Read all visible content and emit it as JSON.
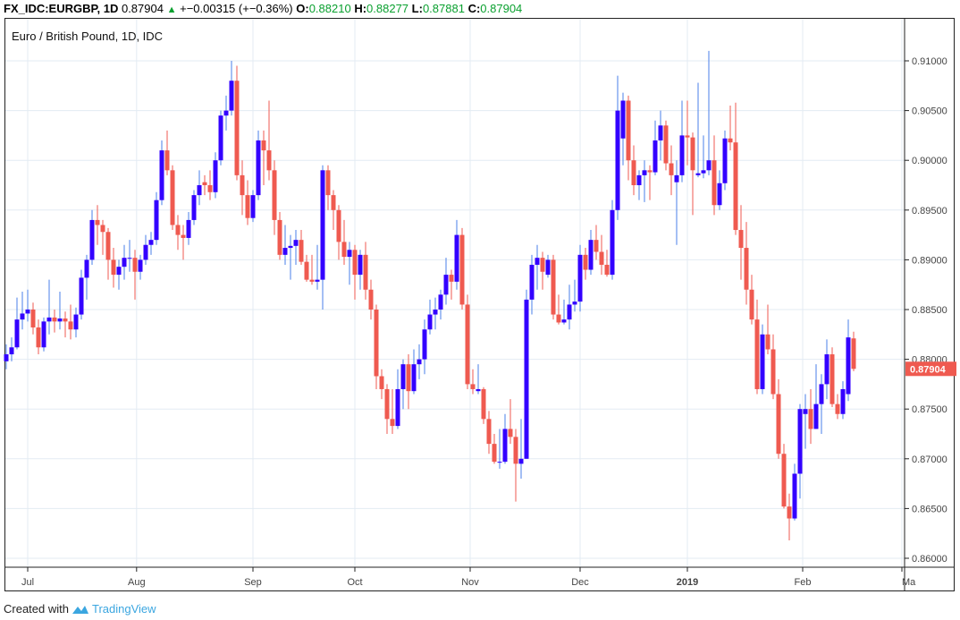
{
  "header": {
    "symbol": "FX_IDC:EURGBP, 1D",
    "last": "0.87904",
    "change": "+−0.00315 (+−0.36%)",
    "o_label": "O:",
    "o": "0.88210",
    "h_label": "H:",
    "h": "0.88277",
    "l_label": "L:",
    "l": "0.87881",
    "c_label": "C:",
    "c": "0.87904"
  },
  "footer": {
    "created_with": "Created with",
    "brand": "TradingView"
  },
  "colors": {
    "up": "#3300ff",
    "up_wick": "#4a7fe8",
    "down": "#ef5a50",
    "grid": "#e3ebf3",
    "last_label": "#ef5a50"
  },
  "chart_data": {
    "type": "candlestick",
    "title": "Euro / British Pound, 1D, IDC",
    "ylim": [
      0.8585,
      0.9135
    ],
    "y_ticks": [
      "0.86000",
      "0.86500",
      "0.87000",
      "0.87500",
      "0.88000",
      "0.88500",
      "0.89000",
      "0.89500",
      "0.90000",
      "0.90500",
      "0.91000"
    ],
    "x_ticks": [
      {
        "label": "Jul",
        "index": 4
      },
      {
        "label": "Aug",
        "index": 24.3
      },
      {
        "label": "Sep",
        "index": 46
      },
      {
        "label": "Oct",
        "index": 65
      },
      {
        "label": "Nov",
        "index": 86.5
      },
      {
        "label": "Dec",
        "index": 107
      },
      {
        "label": "2019",
        "index": 127,
        "bold": true
      },
      {
        "label": "Feb",
        "index": 148.5
      },
      {
        "label": "Ma",
        "index": 167
      }
    ],
    "last_price_label": "0.87904",
    "last_price": 0.87904,
    "ohlc": [
      [
        0.8798,
        0.8815,
        0.879,
        0.8805
      ],
      [
        0.8805,
        0.8822,
        0.8798,
        0.8812
      ],
      [
        0.8812,
        0.8862,
        0.881,
        0.884
      ],
      [
        0.884,
        0.8868,
        0.883,
        0.8846
      ],
      [
        0.8846,
        0.887,
        0.8838,
        0.885
      ],
      [
        0.885,
        0.8857,
        0.8825,
        0.8832
      ],
      [
        0.8832,
        0.884,
        0.8805,
        0.8812
      ],
      [
        0.8812,
        0.8842,
        0.8808,
        0.8838
      ],
      [
        0.8838,
        0.888,
        0.8825,
        0.8842
      ],
      [
        0.8842,
        0.885,
        0.8827,
        0.8838
      ],
      [
        0.8838,
        0.8868,
        0.883,
        0.8841
      ],
      [
        0.8841,
        0.8848,
        0.8822,
        0.8838
      ],
      [
        0.8838,
        0.8855,
        0.882,
        0.883
      ],
      [
        0.883,
        0.8852,
        0.8822,
        0.8845
      ],
      [
        0.8845,
        0.889,
        0.884,
        0.8882
      ],
      [
        0.8882,
        0.8905,
        0.886,
        0.89
      ],
      [
        0.89,
        0.895,
        0.8895,
        0.894
      ],
      [
        0.894,
        0.8955,
        0.8915,
        0.8935
      ],
      [
        0.8935,
        0.894,
        0.8905,
        0.8928
      ],
      [
        0.8928,
        0.8932,
        0.888,
        0.89
      ],
      [
        0.89,
        0.8912,
        0.8872,
        0.8885
      ],
      [
        0.8885,
        0.89,
        0.887,
        0.8893
      ],
      [
        0.8893,
        0.8915,
        0.888,
        0.8902
      ],
      [
        0.8902,
        0.892,
        0.8888,
        0.8902
      ],
      [
        0.8902,
        0.891,
        0.886,
        0.8888
      ],
      [
        0.8888,
        0.8905,
        0.888,
        0.89
      ],
      [
        0.89,
        0.8925,
        0.8895,
        0.8915
      ],
      [
        0.8915,
        0.8928,
        0.8905,
        0.892
      ],
      [
        0.892,
        0.8968,
        0.8915,
        0.896
      ],
      [
        0.896,
        0.902,
        0.8955,
        0.901
      ],
      [
        0.901,
        0.903,
        0.8985,
        0.899
      ],
      [
        0.899,
        0.8995,
        0.893,
        0.8935
      ],
      [
        0.8935,
        0.8945,
        0.891,
        0.8925
      ],
      [
        0.8925,
        0.8935,
        0.89,
        0.8922
      ],
      [
        0.8922,
        0.8948,
        0.8915,
        0.894
      ],
      [
        0.894,
        0.897,
        0.8935,
        0.8965
      ],
      [
        0.8965,
        0.899,
        0.8955,
        0.8975
      ],
      [
        0.8978,
        0.8985,
        0.8965,
        0.8975
      ],
      [
        0.8975,
        0.899,
        0.896,
        0.8968
      ],
      [
        0.8968,
        0.9008,
        0.8962,
        0.9
      ],
      [
        0.9,
        0.905,
        0.8995,
        0.9045
      ],
      [
        0.9045,
        0.9065,
        0.903,
        0.905
      ],
      [
        0.905,
        0.91,
        0.9045,
        0.908
      ],
      [
        0.908,
        0.9095,
        0.898,
        0.8985
      ],
      [
        0.8985,
        0.9,
        0.8945,
        0.8965
      ],
      [
        0.8965,
        0.898,
        0.8935,
        0.8942
      ],
      [
        0.8942,
        0.897,
        0.8938,
        0.8965
      ],
      [
        0.8965,
        0.903,
        0.896,
        0.902
      ],
      [
        0.902,
        0.903,
        0.8975,
        0.901
      ],
      [
        0.901,
        0.906,
        0.898,
        0.899
      ],
      [
        0.899,
        0.9,
        0.8925,
        0.894
      ],
      [
        0.894,
        0.8948,
        0.89,
        0.8905
      ],
      [
        0.8905,
        0.8935,
        0.8895,
        0.8912
      ],
      [
        0.8912,
        0.8925,
        0.888,
        0.8914
      ],
      [
        0.8914,
        0.893,
        0.8895,
        0.892
      ],
      [
        0.892,
        0.893,
        0.8895,
        0.8898
      ],
      [
        0.8898,
        0.8905,
        0.8878,
        0.888
      ],
      [
        0.888,
        0.8905,
        0.8875,
        0.8878
      ],
      [
        0.8878,
        0.8915,
        0.887,
        0.888
      ],
      [
        0.888,
        0.8995,
        0.885,
        0.899
      ],
      [
        0.899,
        0.8995,
        0.895,
        0.8965
      ],
      [
        0.8965,
        0.897,
        0.893,
        0.895
      ],
      [
        0.895,
        0.8955,
        0.89,
        0.8918
      ],
      [
        0.8918,
        0.894,
        0.8895,
        0.8903
      ],
      [
        0.8903,
        0.8918,
        0.8875,
        0.891
      ],
      [
        0.891,
        0.8915,
        0.886,
        0.8885
      ],
      [
        0.8885,
        0.891,
        0.887,
        0.8905
      ],
      [
        0.8905,
        0.8918,
        0.886,
        0.887
      ],
      [
        0.887,
        0.888,
        0.884,
        0.885
      ],
      [
        0.885,
        0.8855,
        0.877,
        0.8783
      ],
      [
        0.8783,
        0.879,
        0.876,
        0.877
      ],
      [
        0.877,
        0.8775,
        0.8725,
        0.874
      ],
      [
        0.874,
        0.877,
        0.8725,
        0.8733
      ],
      [
        0.8733,
        0.879,
        0.873,
        0.877
      ],
      [
        0.877,
        0.88,
        0.875,
        0.8795
      ],
      [
        0.8795,
        0.8805,
        0.875,
        0.8768
      ],
      [
        0.8768,
        0.881,
        0.8765,
        0.8795
      ],
      [
        0.8795,
        0.8815,
        0.878,
        0.88
      ],
      [
        0.88,
        0.884,
        0.8785,
        0.883
      ],
      [
        0.883,
        0.886,
        0.8825,
        0.8845
      ],
      [
        0.8845,
        0.8862,
        0.883,
        0.885
      ],
      [
        0.885,
        0.887,
        0.884,
        0.8865
      ],
      [
        0.8865,
        0.8902,
        0.8855,
        0.8885
      ],
      [
        0.8885,
        0.889,
        0.886,
        0.8878
      ],
      [
        0.8878,
        0.894,
        0.887,
        0.8925
      ],
      [
        0.8925,
        0.8932,
        0.885,
        0.8855
      ],
      [
        0.8855,
        0.8865,
        0.877,
        0.8775
      ],
      [
        0.8775,
        0.879,
        0.8765,
        0.877
      ],
      [
        0.8768,
        0.8795,
        0.8765,
        0.877
      ],
      [
        0.877,
        0.8772,
        0.8735,
        0.874
      ],
      [
        0.874,
        0.8748,
        0.8705,
        0.8715
      ],
      [
        0.8715,
        0.8725,
        0.8695,
        0.8697
      ],
      [
        0.8697,
        0.873,
        0.869,
        0.8697
      ],
      [
        0.8697,
        0.8745,
        0.8695,
        0.873
      ],
      [
        0.873,
        0.876,
        0.8715,
        0.8722
      ],
      [
        0.8722,
        0.873,
        0.8657,
        0.8695
      ],
      [
        0.8695,
        0.874,
        0.868,
        0.87
      ],
      [
        0.87,
        0.887,
        0.87,
        0.886
      ],
      [
        0.886,
        0.8905,
        0.8845,
        0.8895
      ],
      [
        0.8895,
        0.8915,
        0.887,
        0.8902
      ],
      [
        0.8902,
        0.8908,
        0.887,
        0.8888
      ],
      [
        0.8885,
        0.8905,
        0.8882,
        0.89
      ],
      [
        0.89,
        0.8905,
        0.884,
        0.8845
      ],
      [
        0.8845,
        0.8865,
        0.8835,
        0.8837
      ],
      [
        0.8837,
        0.886,
        0.8835,
        0.884
      ],
      [
        0.884,
        0.8875,
        0.883,
        0.8855
      ],
      [
        0.8855,
        0.888,
        0.8848,
        0.8858
      ],
      [
        0.8858,
        0.8915,
        0.8848,
        0.8905
      ],
      [
        0.8905,
        0.8912,
        0.888,
        0.889
      ],
      [
        0.889,
        0.893,
        0.8885,
        0.892
      ],
      [
        0.892,
        0.8935,
        0.89,
        0.8908
      ],
      [
        0.8908,
        0.8925,
        0.8885,
        0.8895
      ],
      [
        0.8895,
        0.891,
        0.8883,
        0.8885
      ],
      [
        0.8885,
        0.896,
        0.888,
        0.895
      ],
      [
        0.895,
        0.9085,
        0.894,
        0.905
      ],
      [
        0.9022,
        0.9068,
        0.8995,
        0.906
      ],
      [
        0.906,
        0.9065,
        0.898,
        0.9
      ],
      [
        0.9,
        0.9015,
        0.8965,
        0.8975
      ],
      [
        0.8975,
        0.899,
        0.896,
        0.8985
      ],
      [
        0.8985,
        0.9,
        0.8958,
        0.899
      ],
      [
        0.899,
        0.8995,
        0.896,
        0.8988
      ],
      [
        0.8988,
        0.904,
        0.8985,
        0.902
      ],
      [
        0.902,
        0.905,
        0.9,
        0.9035
      ],
      [
        0.9035,
        0.904,
        0.899,
        0.8997
      ],
      [
        0.8997,
        0.9015,
        0.8965,
        0.8985
      ],
      [
        0.8978,
        0.9,
        0.8915,
        0.8985
      ],
      [
        0.8985,
        0.906,
        0.8978,
        0.9025
      ],
      [
        0.9025,
        0.906,
        0.8995,
        0.9023
      ],
      [
        0.9023,
        0.9028,
        0.8945,
        0.899
      ],
      [
        0.8985,
        0.9078,
        0.8983,
        0.8987
      ],
      [
        0.8987,
        0.9025,
        0.8982,
        0.899
      ],
      [
        0.899,
        0.911,
        0.8985,
        0.9
      ],
      [
        0.9,
        0.9025,
        0.8945,
        0.8955
      ],
      [
        0.8955,
        0.899,
        0.895,
        0.8977
      ],
      [
        0.8977,
        0.903,
        0.897,
        0.9022
      ],
      [
        0.9022,
        0.9055,
        0.901,
        0.9018
      ],
      [
        0.9018,
        0.9058,
        0.8925,
        0.893
      ],
      [
        0.893,
        0.8955,
        0.888,
        0.8912
      ],
      [
        0.8912,
        0.8938,
        0.8855,
        0.887
      ],
      [
        0.887,
        0.8885,
        0.8835,
        0.884
      ],
      [
        0.884,
        0.886,
        0.8765,
        0.877
      ],
      [
        0.877,
        0.8835,
        0.8765,
        0.8825
      ],
      [
        0.8825,
        0.8855,
        0.8805,
        0.881
      ],
      [
        0.881,
        0.8825,
        0.876,
        0.8765
      ],
      [
        0.8765,
        0.878,
        0.87,
        0.8705
      ],
      [
        0.8705,
        0.8715,
        0.865,
        0.8652
      ],
      [
        0.8652,
        0.8665,
        0.8618,
        0.864
      ],
      [
        0.864,
        0.8695,
        0.8638,
        0.8685
      ],
      [
        0.8685,
        0.8755,
        0.866,
        0.875
      ],
      [
        0.8745,
        0.8765,
        0.871,
        0.875
      ],
      [
        0.875,
        0.877,
        0.8715,
        0.873
      ],
      [
        0.873,
        0.8795,
        0.873,
        0.8755
      ],
      [
        0.8755,
        0.8785,
        0.8725,
        0.8775
      ],
      [
        0.8775,
        0.882,
        0.876,
        0.8805
      ],
      [
        0.8805,
        0.8812,
        0.8752,
        0.8755
      ],
      [
        0.8755,
        0.8765,
        0.874,
        0.8745
      ],
      [
        0.8745,
        0.8778,
        0.874,
        0.877
      ],
      [
        0.8765,
        0.884,
        0.8758,
        0.8822
      ],
      [
        0.8821,
        0.88277,
        0.87881,
        0.87904
      ]
    ]
  }
}
